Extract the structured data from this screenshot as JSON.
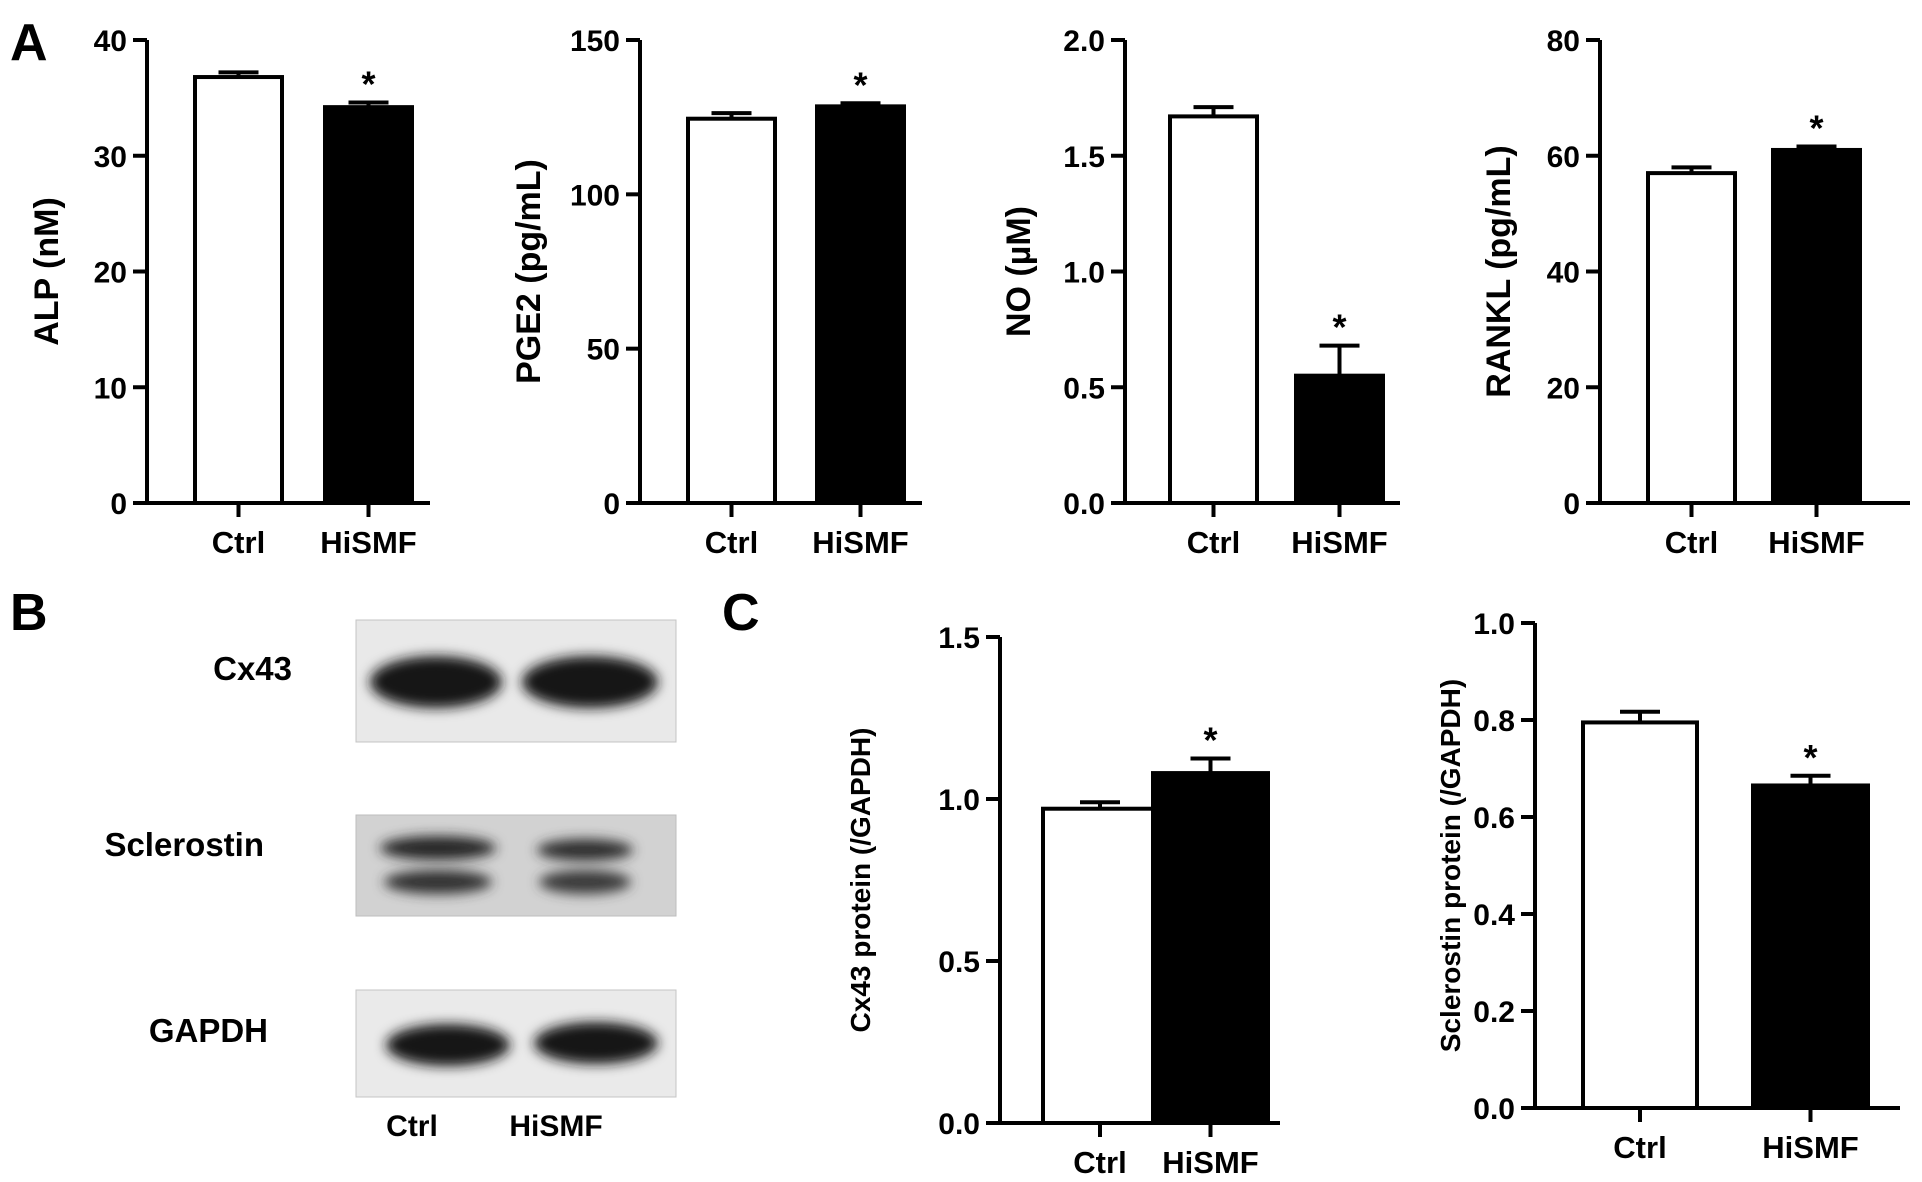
{
  "panels": {
    "a": "A",
    "b": "B",
    "c": "C"
  },
  "blot": {
    "proteins": [
      "Cx43",
      "Sclerostin",
      "GAPDH"
    ],
    "lanes": [
      "Ctrl",
      "HiSMF"
    ]
  },
  "colors": {
    "ctrl_fill": "#ffffff",
    "hismf_fill": "#000000",
    "axis": "#000000"
  },
  "chart_data": [
    {
      "panel": "A",
      "type": "bar",
      "categories": [
        "Ctrl",
        "HiSMF"
      ],
      "values": [
        36.8,
        34.2
      ],
      "errors": [
        0.4,
        0.4
      ],
      "significance": [
        "",
        "*"
      ],
      "ylabel": "ALP (nM)",
      "ylim": [
        0,
        40
      ],
      "yticks": [
        "0",
        "10",
        "20",
        "30",
        "40"
      ]
    },
    {
      "panel": "A",
      "type": "bar",
      "categories": [
        "Ctrl",
        "HiSMF"
      ],
      "values": [
        124.5,
        128.5
      ],
      "errors": [
        1.8,
        1.0
      ],
      "significance": [
        "",
        "*"
      ],
      "ylabel": "PGE2 (pg/mL)",
      "ylim": [
        0,
        150
      ],
      "yticks": [
        "0",
        "50",
        "100",
        "150"
      ]
    },
    {
      "panel": "A",
      "type": "bar",
      "categories": [
        "Ctrl",
        "HiSMF"
      ],
      "values": [
        1.67,
        0.55
      ],
      "errors": [
        0.04,
        0.13
      ],
      "significance": [
        "",
        "*"
      ],
      "ylabel": "NO (µM)",
      "ylim": [
        0,
        2.0
      ],
      "yticks": [
        "0.0",
        "0.5",
        "1.0",
        "1.5",
        "2.0"
      ]
    },
    {
      "panel": "A",
      "type": "bar",
      "categories": [
        "Ctrl",
        "HiSMF"
      ],
      "values": [
        57.0,
        61.0
      ],
      "errors": [
        1.0,
        0.6
      ],
      "significance": [
        "",
        "*"
      ],
      "ylabel": "RANKL (pg/mL)",
      "ylim": [
        0,
        80
      ],
      "yticks": [
        "0",
        "20",
        "40",
        "60",
        "80"
      ]
    },
    {
      "panel": "C",
      "type": "bar",
      "categories": [
        "Ctrl",
        "HiSMF"
      ],
      "values": [
        0.97,
        1.08
      ],
      "errors": [
        0.02,
        0.045
      ],
      "significance": [
        "",
        "*"
      ],
      "ylabel": "Cx43 protein (/GAPDH)",
      "ylim": [
        0,
        1.5
      ],
      "yticks": [
        "0.0",
        "0.5",
        "1.0",
        "1.5"
      ]
    },
    {
      "panel": "C",
      "type": "bar",
      "categories": [
        "Ctrl",
        "HiSMF"
      ],
      "values": [
        0.795,
        0.665
      ],
      "errors": [
        0.022,
        0.02
      ],
      "significance": [
        "",
        "*"
      ],
      "ylabel": "Sclerostin protein (/GAPDH)",
      "ylim": [
        0,
        1.0
      ],
      "yticks": [
        "0.0",
        "0.2",
        "0.4",
        "0.6",
        "0.8",
        "1.0"
      ]
    }
  ]
}
